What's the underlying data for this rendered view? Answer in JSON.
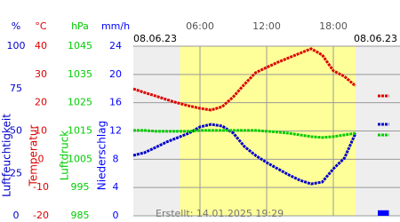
{
  "chart_data": {
    "type": "line",
    "date_start": "08.06.23",
    "date_end": "08.06.23",
    "created": "Erstellt: 14.01.2025 19:29",
    "xlim": [
      0,
      24
    ],
    "xticks": [
      {
        "value": 6,
        "label": "06:00"
      },
      {
        "value": 12,
        "label": "12:00"
      },
      {
        "value": 18,
        "label": "18:00"
      }
    ],
    "daylight": [
      4.2,
      20.0
    ],
    "grid": true,
    "axes": [
      {
        "unit": "%",
        "label": "Luftfeuchtigkeit",
        "color": "#0000cc",
        "lim": [
          0,
          100
        ],
        "ticks": [
          0,
          25,
          50,
          75,
          100
        ]
      },
      {
        "unit": "°C",
        "label": "Temperatur",
        "color": "#dd0000",
        "lim": [
          -20,
          40
        ],
        "ticks": [
          -20,
          -10,
          0,
          10,
          20,
          30,
          40
        ]
      },
      {
        "unit": "hPa",
        "label": "Luftdruck",
        "color": "#00cc00",
        "lim": [
          985,
          1045
        ],
        "ticks": [
          985,
          995,
          1005,
          1015,
          1025,
          1035,
          1045
        ]
      },
      {
        "unit": "mm/h",
        "label": "Niederschlag",
        "color": "#0000ff",
        "lim": [
          0,
          24
        ],
        "ticks": [
          0,
          4,
          8,
          12,
          16,
          20,
          24
        ]
      }
    ],
    "x": [
      0,
      1,
      2,
      3,
      4,
      5,
      6,
      7,
      8,
      9,
      10,
      11,
      12,
      13,
      14,
      15,
      16,
      17,
      18,
      19,
      20,
      21,
      22,
      23
    ],
    "series": [
      {
        "type": "line",
        "axis": 0,
        "color": "#0000cc",
        "values": [
          35.6,
          37.2,
          40.3,
          43.5,
          46.1,
          48.7,
          52.4,
          53.9,
          52.9,
          48.7,
          40.8,
          35.6,
          31.4,
          27.7,
          24.1,
          20.9,
          18.8,
          19.9,
          27.7,
          34.0,
          48.7,
          null,
          53.9,
          53.9
        ]
      },
      {
        "type": "line",
        "axis": 1,
        "color": "#dd0000",
        "values": [
          24.9,
          23.6,
          22.4,
          21.1,
          19.9,
          18.9,
          18.0,
          17.4,
          18.6,
          22.1,
          26.5,
          30.6,
          32.5,
          34.3,
          35.9,
          37.5,
          39.1,
          36.9,
          31.3,
          29.3,
          25.9,
          null,
          22.4,
          22.4
        ]
      },
      {
        "type": "line",
        "axis": 2,
        "color": "#00cc00",
        "values": [
          1015.2,
          1015.2,
          1014.9,
          1014.9,
          1014.9,
          1014.9,
          1015.2,
          1015.2,
          1015.2,
          1015.2,
          1015.2,
          1015.2,
          1014.9,
          1014.6,
          1014.2,
          1013.6,
          1013.0,
          1012.7,
          1013.0,
          1013.6,
          1014.2,
          null,
          1013.6,
          1013.6
        ]
      },
      {
        "type": "bar",
        "axis": 3,
        "color": "#0000ff",
        "values": [
          null,
          null,
          null,
          null,
          null,
          null,
          null,
          null,
          null,
          null,
          null,
          null,
          null,
          null,
          null,
          null,
          null,
          null,
          null,
          null,
          null,
          null,
          0.4,
          null
        ]
      }
    ]
  }
}
